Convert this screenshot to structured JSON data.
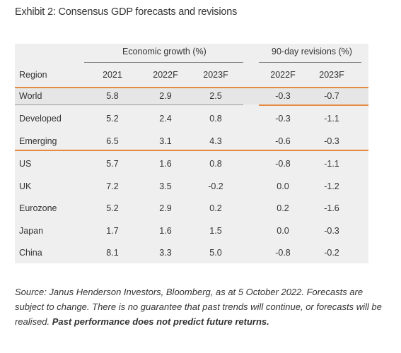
{
  "title": "Exhibit 2: Consensus GDP forecasts and revisions",
  "groups": {
    "growth": "Economic growth (%)",
    "revisions": "90-day revisions (%)"
  },
  "columns": {
    "region": "Region",
    "c2021": "2021",
    "c2022": "2022F",
    "c2023": "2023F",
    "r2022": "2022F",
    "r2023": "2023F"
  },
  "rows": [
    {
      "region": "World",
      "g2021": "5.8",
      "g2022": "2.9",
      "g2023": "2.5",
      "r2022": "-0.3",
      "r2023": "-0.7"
    },
    {
      "region": "Developed",
      "g2021": "5.2",
      "g2022": "2.4",
      "g2023": "0.8",
      "r2022": "-0.3",
      "r2023": "-1.1"
    },
    {
      "region": "Emerging",
      "g2021": "6.5",
      "g2022": "3.1",
      "g2023": "4.3",
      "r2022": "-0.6",
      "r2023": "-0.3"
    },
    {
      "region": "US",
      "g2021": "5.7",
      "g2022": "1.6",
      "g2023": "0.8",
      "r2022": "-0.8",
      "r2023": "-1.1"
    },
    {
      "region": "UK",
      "g2021": "7.2",
      "g2022": "3.5",
      "g2023": "-0.2",
      "r2022": "0.0",
      "r2023": "-1.2"
    },
    {
      "region": "Eurozone",
      "g2021": "5.2",
      "g2022": "2.9",
      "g2023": "0.2",
      "r2022": "0.2",
      "r2023": "-1.6"
    },
    {
      "region": "Japan",
      "g2021": "1.7",
      "g2022": "1.6",
      "g2023": "1.5",
      "r2022": "0.0",
      "r2023": "-0.3"
    },
    {
      "region": "China",
      "g2021": "8.1",
      "g2022": "3.3",
      "g2023": "5.0",
      "r2022": "-0.8",
      "r2023": "-0.2"
    }
  ],
  "source": {
    "italic": "Source: Janus Henderson Investors, Bloomberg, as at 5 October 2022. Forecasts are subject to change. There is no guarantee that past trends will continue, or forecasts will be realised.",
    "bold": "Past performance does not predict future returns."
  },
  "colors": {
    "accent": "#e58a40",
    "table_bg": "#efefef"
  }
}
